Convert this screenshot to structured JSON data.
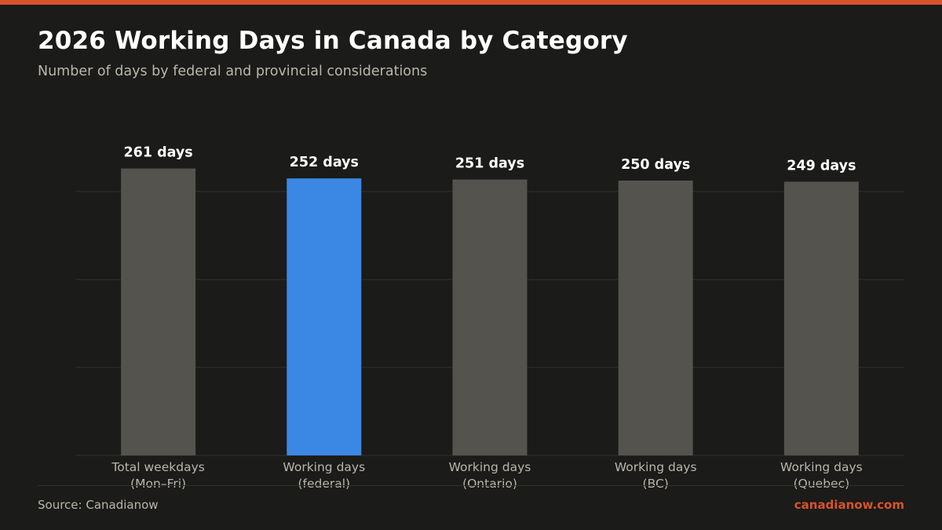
{
  "header": {
    "title": "2026 Working Days in Canada by Category",
    "subtitle": "Number of days by federal and provincial considerations"
  },
  "footer": {
    "source": "Source: Canadianow",
    "brand": "canadianow.com"
  },
  "colors": {
    "accent": "#d9532a",
    "highlight_bar": "#3b88e4",
    "default_bar": "#54534d",
    "grid": "#2f2f2c",
    "value_label": "#ffffff",
    "tick_label": "#b9b6ad"
  },
  "chart_data": {
    "type": "bar",
    "categories": [
      [
        "Total weekdays",
        "(Mon–Fri)"
      ],
      [
        "Working days",
        "(federal)"
      ],
      [
        "Working days",
        "(Ontario)"
      ],
      [
        "Working days",
        "(BC)"
      ],
      [
        "Working days",
        "(Quebec)"
      ]
    ],
    "values": [
      261,
      252,
      251,
      250,
      249
    ],
    "value_labels": [
      "261 days",
      "252 days",
      "251 days",
      "250 days",
      "249 days"
    ],
    "highlight_index": 1,
    "ylim": [
      0,
      270
    ],
    "grid_values": [
      0,
      80,
      160,
      240
    ],
    "grid": true,
    "xlabel": "",
    "ylabel": ""
  }
}
